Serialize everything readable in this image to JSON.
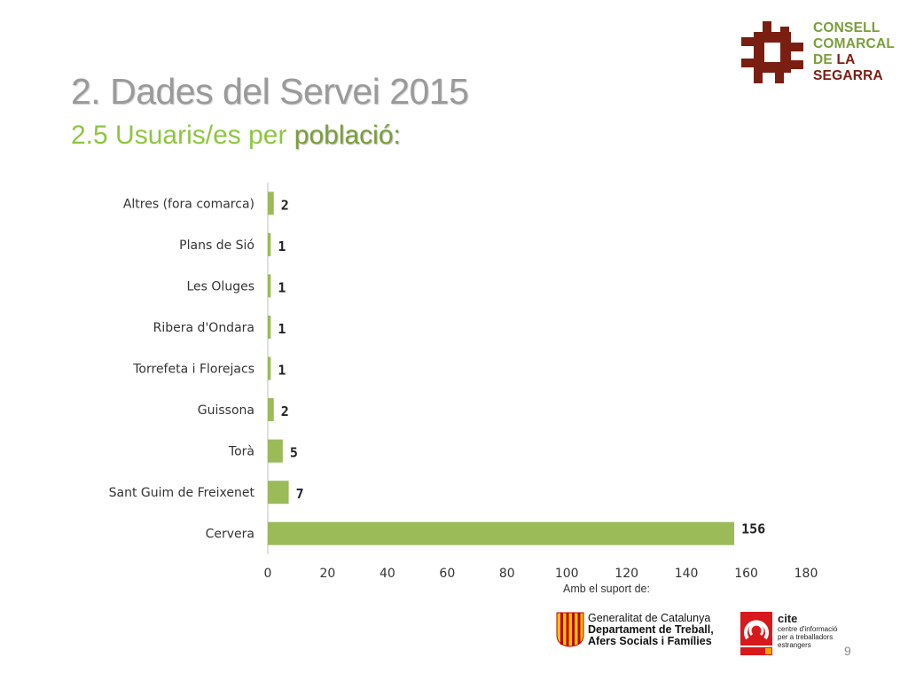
{
  "slide": {
    "title": "2. Dades del Servei  2015",
    "subtitle_prefix": "2.5 Usuaris/es per ",
    "subtitle_emphasis": "població:",
    "support_label": "Amb el suport de:",
    "page_number": "9"
  },
  "logo": {
    "line1": "CONSELL",
    "line2": "COMARCAL",
    "line3_a": "DE ",
    "line3_b": "LA",
    "line4": "SEGARRA"
  },
  "gencat": {
    "line1": "Generalitat de Catalunya",
    "line2": "Departament de Treball,",
    "line3": "Afers Socials i Famílies"
  },
  "cite": {
    "name": "cite",
    "line1": "centre d'informació",
    "line2": "per a treballadors",
    "line3": "estrangers"
  },
  "colors": {
    "bar": "#9bbb59",
    "title": "#9a9a9a",
    "subtitle": "#8dc63f",
    "logo_dark": "#7a1e12"
  },
  "chart_data": {
    "type": "bar",
    "orientation": "horizontal",
    "categories": [
      "Altres (fora comarca)",
      "Plans de Sió",
      "Les Oluges",
      "Ribera d'Ondara",
      "Torrefeta i Florejacs",
      "Guissona",
      "Torà",
      "Sant Guim de Freixenet",
      "Cervera"
    ],
    "values": [
      2,
      1,
      1,
      1,
      1,
      2,
      5,
      7,
      156
    ],
    "xlim": [
      0,
      180
    ],
    "x_ticks": [
      0,
      20,
      40,
      60,
      80,
      100,
      120,
      140,
      160,
      180
    ],
    "grid": false,
    "legend": "none"
  }
}
